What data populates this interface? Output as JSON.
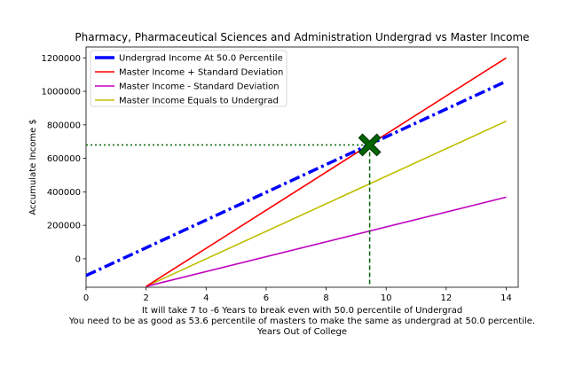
{
  "chart_data": {
    "type": "line",
    "title": "Pharmacy, Pharmaceutical Sciences and Administration Undergrad vs Master Income",
    "ylabel": "Accumulate Income $",
    "xlabel_lines": [
      "It will take 7 to -6 Years to break even with 50.0 percentile of Undergrad",
      "You need to be as good as 53.6 percentile of masters to make the same as undergrad at 50.0 percentile.",
      "Years Out of College"
    ],
    "xlim": [
      0,
      14.4
    ],
    "ylim": [
      -170000,
      1265000
    ],
    "xticks": [
      0,
      2,
      4,
      6,
      8,
      10,
      12,
      14
    ],
    "yticks": [
      0,
      200000,
      400000,
      600000,
      800000,
      1000000,
      1200000
    ],
    "legend_position": "top-left",
    "series": [
      {
        "name": "Undergrad Income At 50.0 Percentile",
        "color": "#0000ff",
        "style": "dashdot",
        "x": [
          0,
          14
        ],
        "y": [
          -100000,
          1060000
        ]
      },
      {
        "name": "Master Income + Standard Deviation",
        "color": "#ff0000",
        "style": "solid",
        "x": [
          2,
          14
        ],
        "y": [
          -165000,
          1200000
        ]
      },
      {
        "name": "Master Income - Standard Deviation",
        "color": "#bf00bf",
        "style": "solid",
        "x": [
          2,
          14
        ],
        "y": [
          -165000,
          368000
        ]
      },
      {
        "name": "Master Income Equals to Undergrad",
        "color": "#bfbf00",
        "style": "solid",
        "x": [
          2,
          14
        ],
        "y": [
          -165000,
          822000
        ]
      }
    ],
    "marker": {
      "x": 9.45,
      "y": 680000,
      "color": "#006400"
    }
  }
}
